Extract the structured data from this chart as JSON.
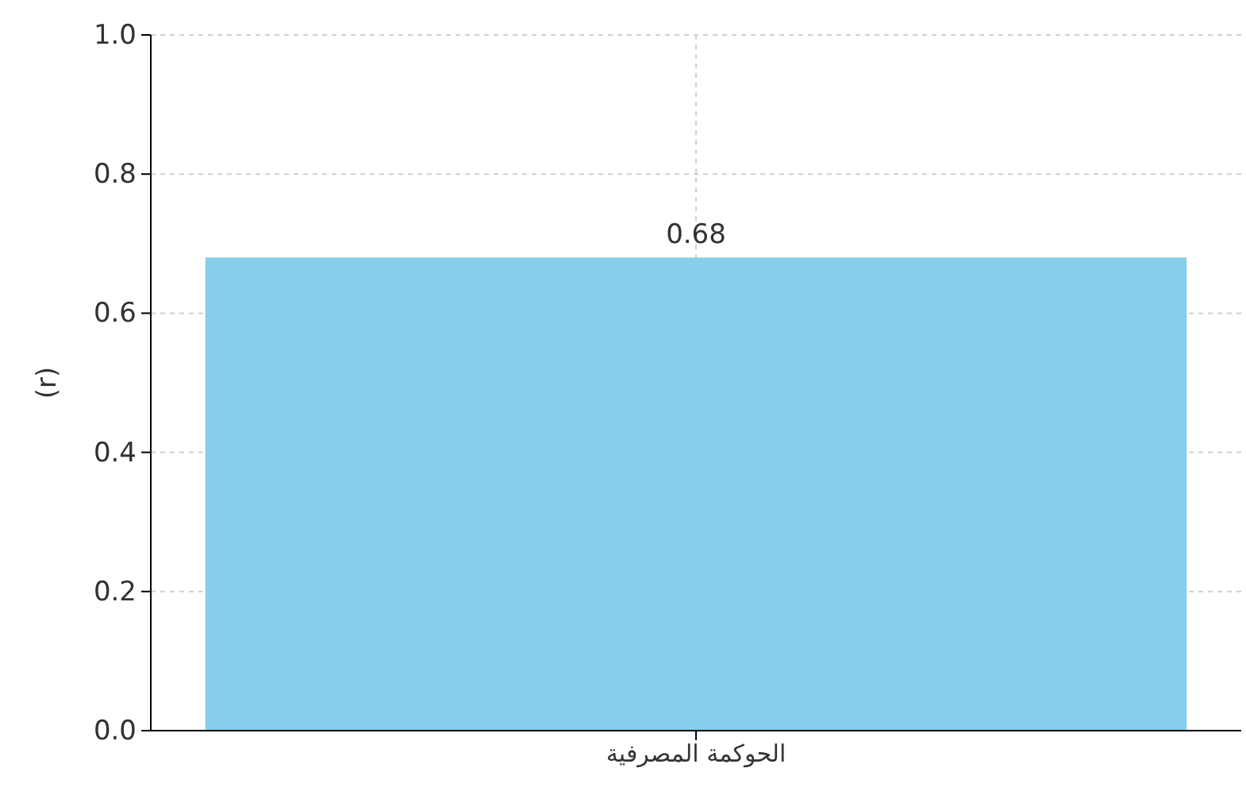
{
  "chart_data": {
    "type": "bar",
    "ylabel": "(r)",
    "categories": [
      "الحوكمة المصرفية"
    ],
    "values": [
      0.68
    ],
    "color": "#87ceeb",
    "ylim": [
      0,
      1
    ],
    "yticks": [
      {
        "value": 0,
        "label": "0.0"
      },
      {
        "value": 0.2,
        "label": "0.2"
      },
      {
        "value": 0.4,
        "label": "0.4"
      },
      {
        "value": 0.6,
        "label": "0.6"
      },
      {
        "value": 0.8,
        "label": "0.8"
      },
      {
        "value": 1,
        "label": "1.0"
      }
    ],
    "grid": true,
    "data_labels": true
  }
}
